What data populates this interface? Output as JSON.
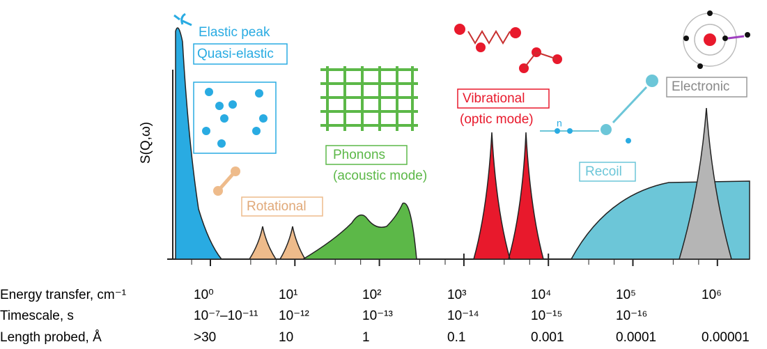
{
  "axis_label": "S(Q,ω)",
  "labels": {
    "elastic": "Elastic peak",
    "quasi_elastic": "Quasi-elastic",
    "rotational": "Rotational",
    "phonons": "Phonons",
    "phonons_sub": "(acoustic mode)",
    "vibrational": "Vibrational",
    "vibrational_sub": "(optic mode)",
    "recoil": "Recoil",
    "neutron": "n",
    "electronic": "Electronic"
  },
  "rows": [
    {
      "label": "Energy transfer, cm⁻¹",
      "values": [
        "10⁰",
        "10¹",
        "10²",
        "10³",
        "10⁴",
        "10⁵",
        "10⁶"
      ]
    },
    {
      "label": "Timescale, s",
      "values": [
        "10⁻⁷–10⁻¹¹",
        "10⁻¹²",
        "10⁻¹³",
        "10⁻¹⁴",
        "10⁻¹⁵",
        "10⁻¹⁶"
      ]
    },
    {
      "label": "Length probed, Å",
      "values": [
        ">30",
        "10",
        "1",
        "0.1",
        "0.001",
        "0.0001",
        "0.00001"
      ]
    }
  ]
}
